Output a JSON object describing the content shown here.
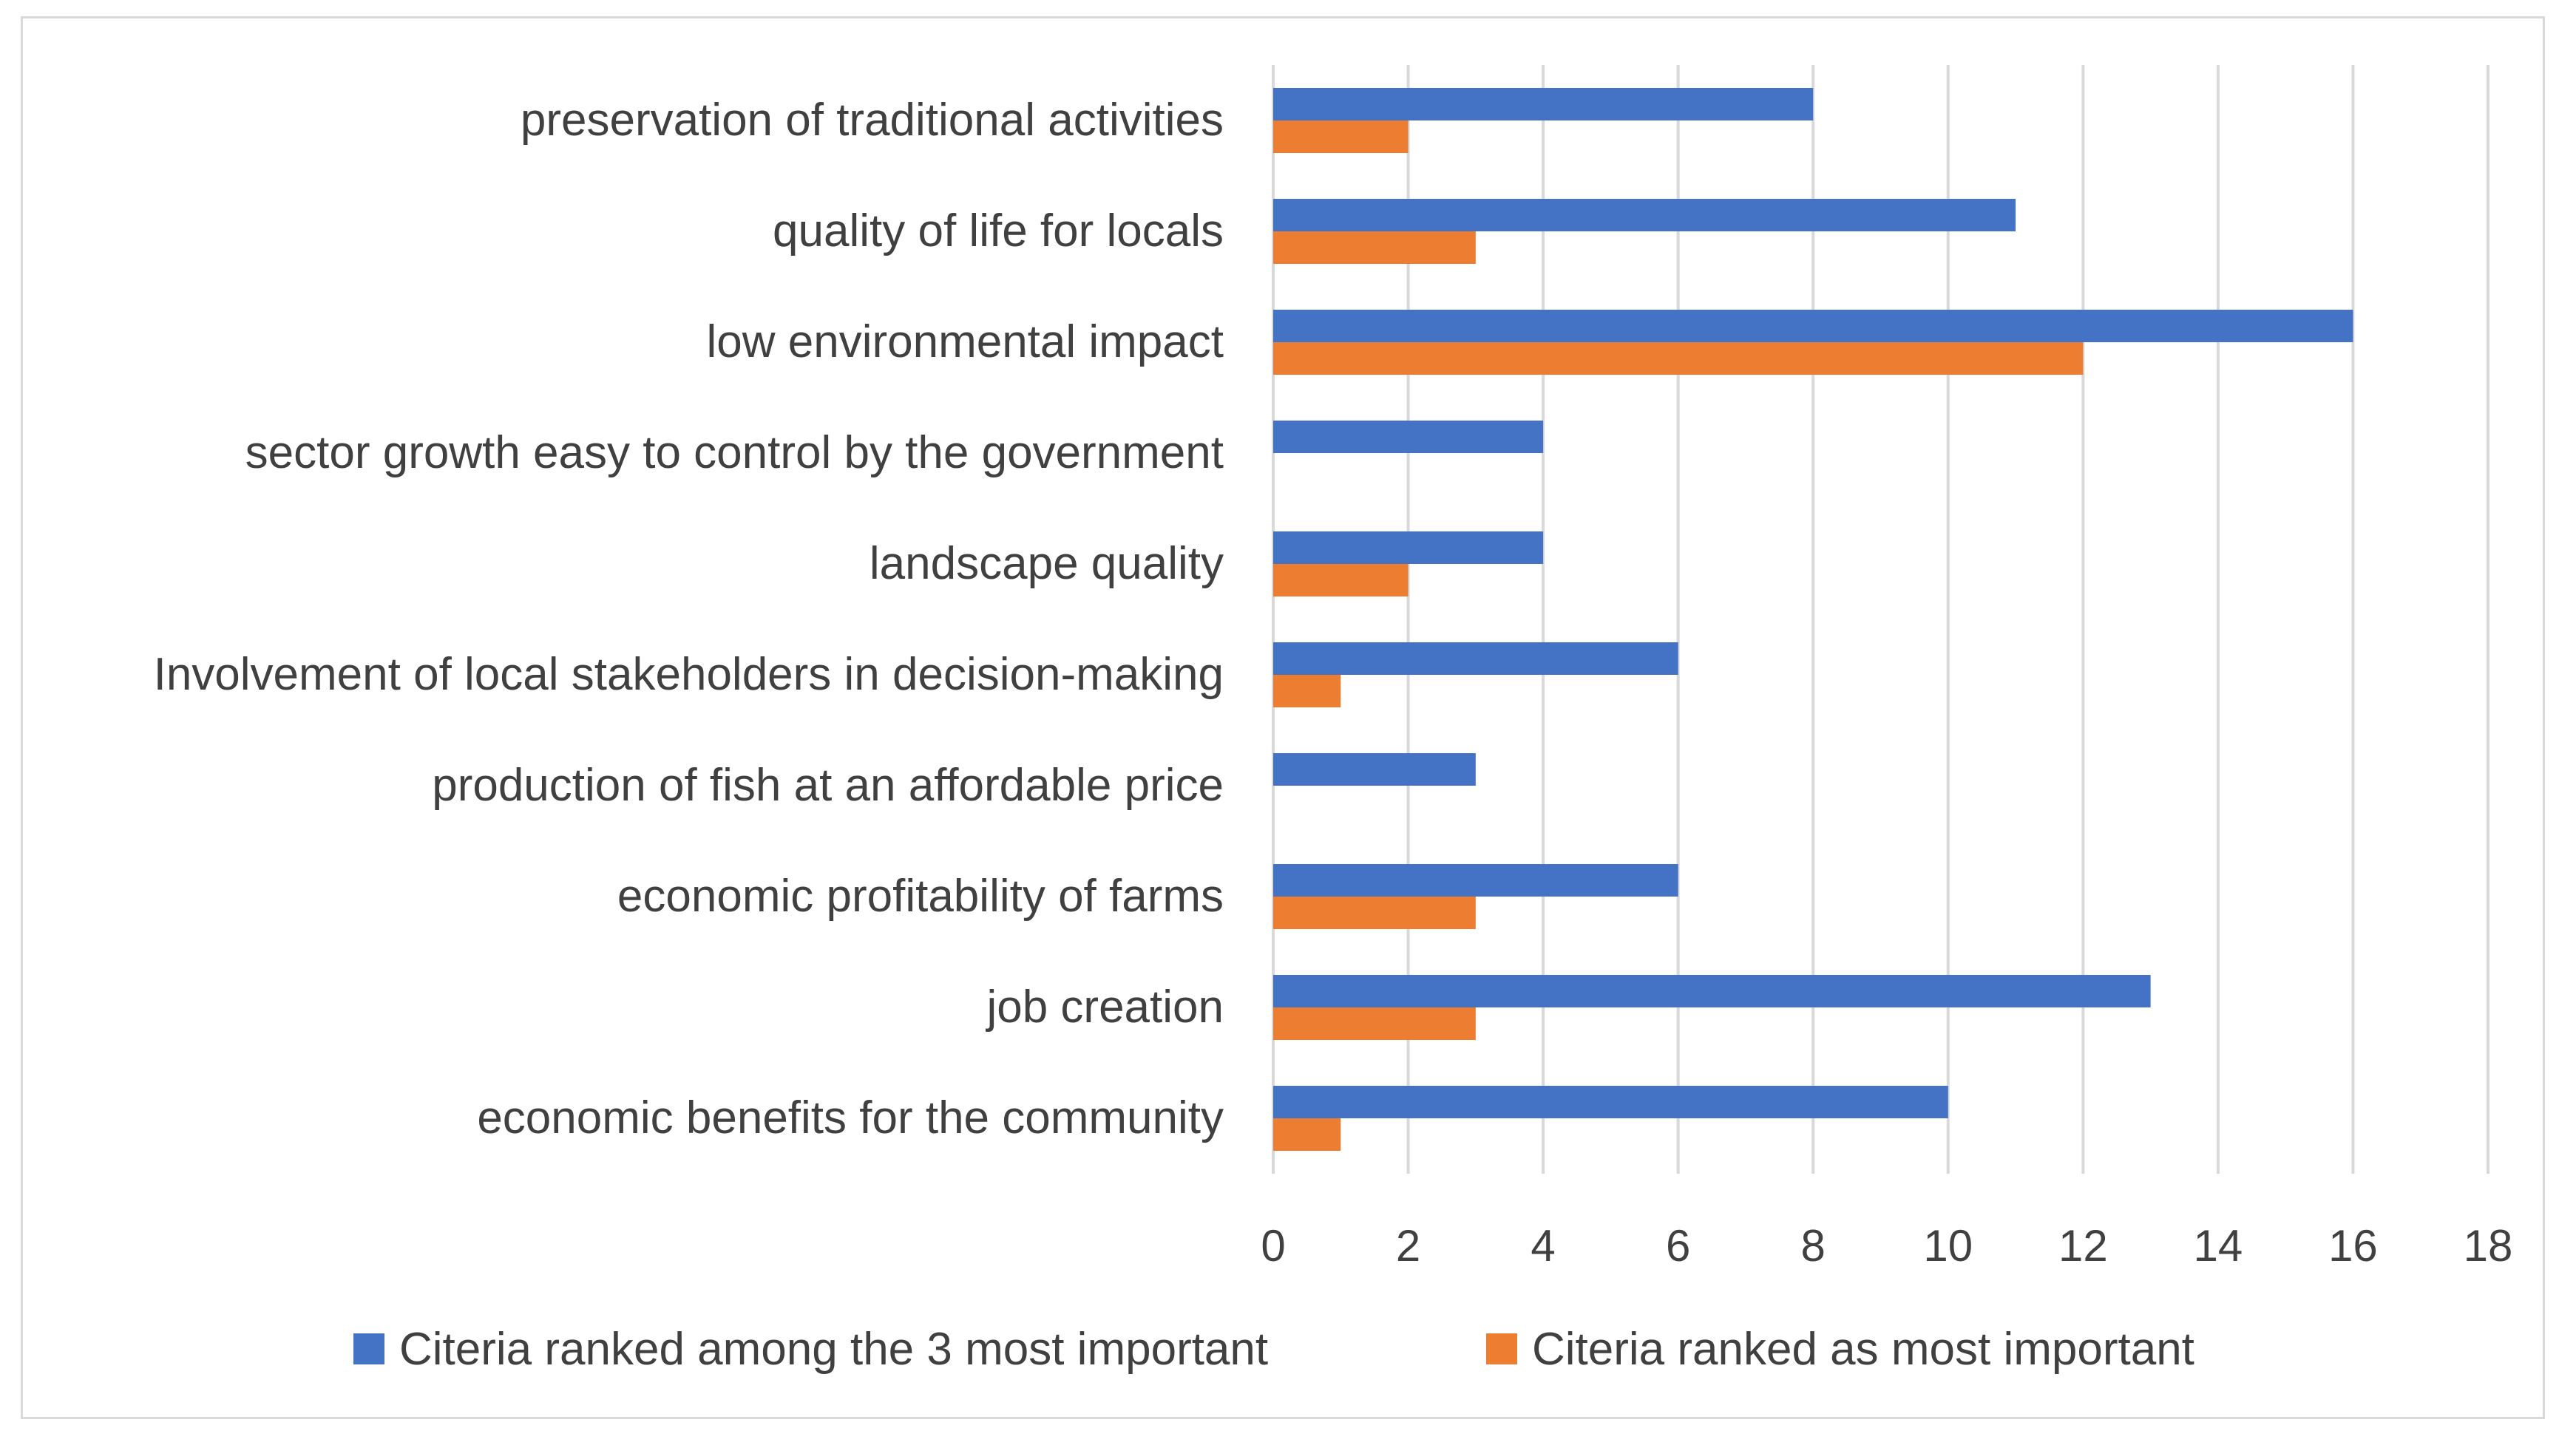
{
  "chart_data": {
    "type": "bar",
    "orientation": "horizontal",
    "categories": [
      "preservation of traditional activities",
      "quality of life for locals",
      "low environmental impact",
      "sector growth easy to control by the government",
      "landscape quality",
      "Involvement of local stakeholders in decision-making",
      "production of fish at an affordable price",
      "economic profitability of farms",
      "job creation",
      "economic benefits for the community"
    ],
    "series": [
      {
        "name": "Citeria ranked among the 3 most important",
        "color": "#4472c4",
        "values": [
          8,
          11,
          16,
          4,
          4,
          6,
          3,
          6,
          13,
          10
        ]
      },
      {
        "name": "Citeria ranked as most important",
        "color": "#ed7d31",
        "values": [
          2,
          3,
          12,
          0,
          2,
          1,
          0,
          3,
          3,
          1
        ]
      }
    ],
    "xlim": [
      0,
      18
    ],
    "xticks": [
      "0",
      "2",
      "4",
      "6",
      "8",
      "10",
      "12",
      "14",
      "16",
      "18"
    ],
    "grid": true,
    "legend_position": "bottom",
    "title": "",
    "xlabel": "",
    "ylabel": ""
  }
}
